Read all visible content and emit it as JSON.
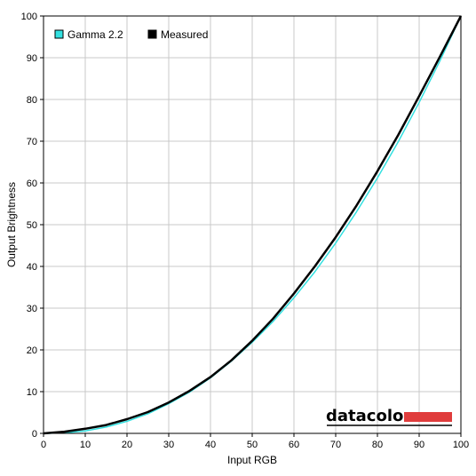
{
  "chart_data": {
    "type": "line",
    "xlabel": "Input RGB",
    "ylabel": "Output Brightness",
    "xlim": [
      0,
      100
    ],
    "ylim": [
      0,
      100
    ],
    "x_ticks": [
      0,
      10,
      20,
      30,
      40,
      50,
      60,
      70,
      80,
      90,
      100
    ],
    "y_ticks": [
      0,
      10,
      20,
      30,
      40,
      50,
      60,
      70,
      80,
      90,
      100
    ],
    "grid": true,
    "legend_placement": "top-left",
    "series": [
      {
        "name": "Gamma 2.2",
        "color": "#33e0e0",
        "x": [
          0,
          5,
          10,
          15,
          20,
          25,
          30,
          35,
          40,
          45,
          50,
          55,
          60,
          65,
          70,
          75,
          80,
          85,
          90,
          95,
          100
        ],
        "y": [
          0,
          0.1,
          0.6,
          1.5,
          2.9,
          4.7,
          7.1,
          9.9,
          13.3,
          17.3,
          21.8,
          26.8,
          32.5,
          38.7,
          45.6,
          53.1,
          61.2,
          69.9,
          79.3,
          89.3,
          100
        ]
      },
      {
        "name": "Measured",
        "color": "#000000",
        "x": [
          0,
          5,
          10,
          15,
          20,
          25,
          30,
          35,
          40,
          45,
          50,
          55,
          60,
          65,
          70,
          75,
          80,
          85,
          90,
          95,
          100
        ],
        "y": [
          0,
          0.4,
          1.1,
          2.0,
          3.4,
          5.1,
          7.4,
          10.2,
          13.5,
          17.5,
          22.2,
          27.5,
          33.5,
          40.0,
          47.0,
          54.6,
          62.8,
          71.5,
          80.8,
          90.3,
          100
        ]
      }
    ]
  },
  "branding": {
    "logo_text": "datacolor",
    "logo_bar_color": "#e03c3c"
  }
}
